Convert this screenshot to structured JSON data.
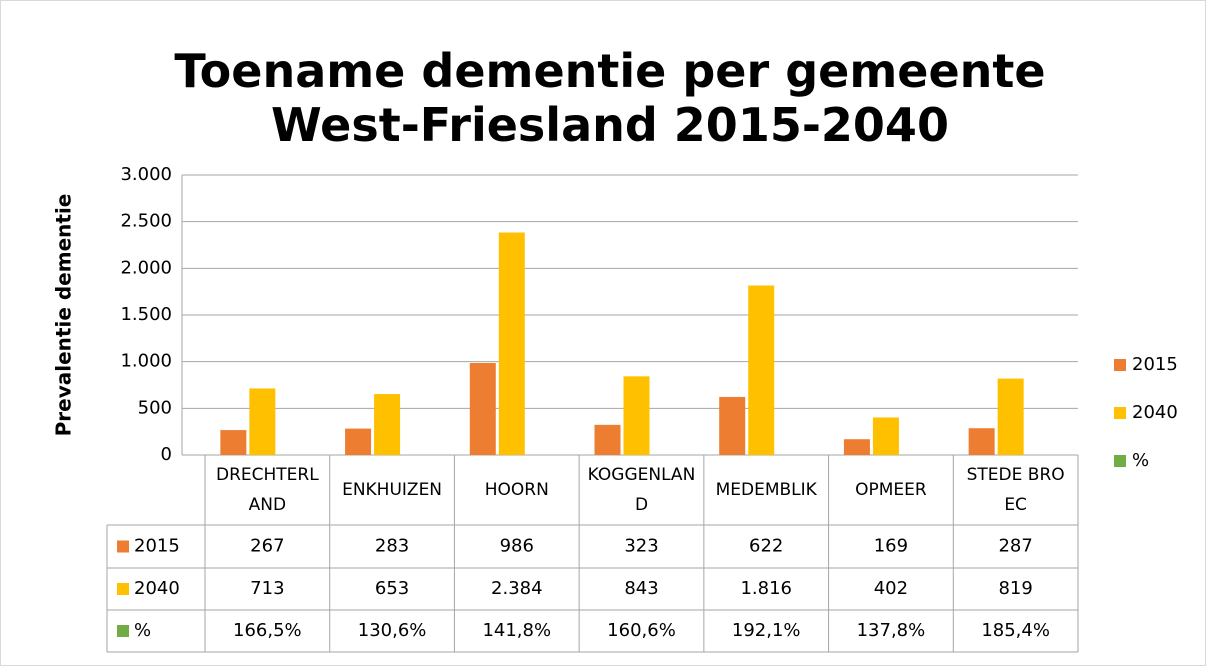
{
  "chart_data": {
    "type": "bar",
    "title": "Toename dementie per gemeente West-Friesland 2015-2040",
    "y_label": "Prevalentie dementie",
    "categories": [
      "DRECHTERLAND",
      "ENKHUIZEN",
      "HOORN",
      "KOGGENLAND",
      "MEDEMBLIK",
      "OPMEER",
      "STEDE BROEC"
    ],
    "series": [
      {
        "name": "2015",
        "color": "#ed7d31",
        "values": [
          267,
          283,
          986,
          323,
          622,
          169,
          287
        ]
      },
      {
        "name": "2040",
        "color": "#ffc000",
        "values": [
          713,
          653,
          2384,
          843,
          1816,
          402,
          819
        ],
        "value_labels": [
          "713",
          "653",
          "2.384",
          "843",
          "1.816",
          "402",
          "819"
        ]
      },
      {
        "name": "%",
        "color": "#70ad47",
        "values": [
          166.5,
          130.6,
          141.8,
          160.6,
          192.1,
          137.8,
          185.4
        ],
        "value_labels": [
          "166,5%",
          "130,6%",
          "141,8%",
          "160,6%",
          "192,1%",
          "137,8%",
          "185,4%"
        ]
      }
    ],
    "ylim": [
      0,
      3000
    ],
    "yticks": [
      0,
      500,
      {
        "value": 1000,
        "label": "1.000"
      },
      {
        "value": 1500,
        "label": "1.500"
      },
      {
        "value": 2000,
        "label": "2.000"
      },
      {
        "value": 2500,
        "label": "2.500"
      },
      {
        "value": 3000,
        "label": "3.000"
      }
    ],
    "grid": true,
    "legend": "right",
    "data_table": true
  }
}
